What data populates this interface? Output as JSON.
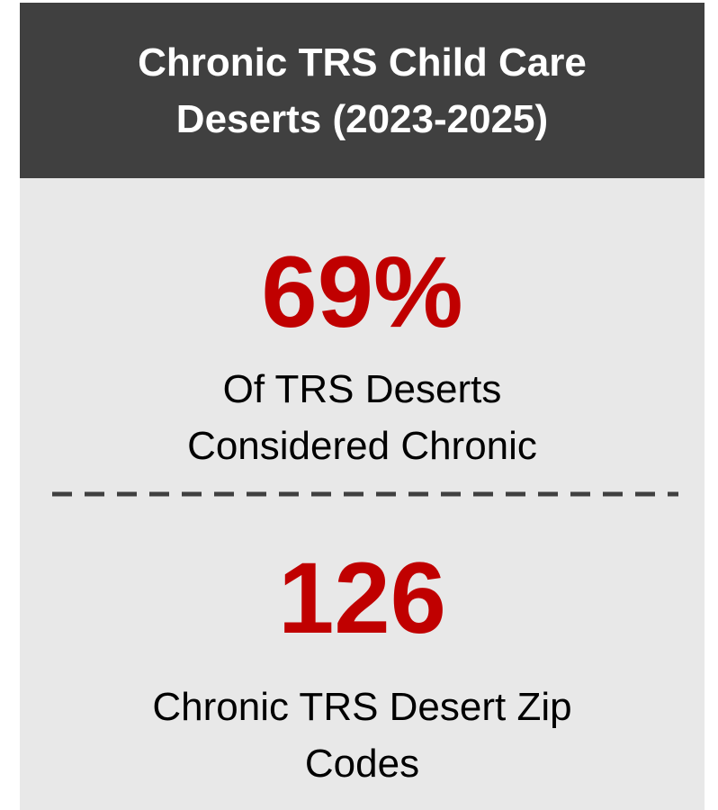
{
  "header": {
    "title": "Chronic TRS Child Care Deserts (2023-2025)"
  },
  "stats": [
    {
      "value": "69%",
      "label": "Of TRS Deserts Considered Chronic"
    },
    {
      "value": "126",
      "label": "Chronic TRS Desert Zip Codes"
    }
  ]
}
